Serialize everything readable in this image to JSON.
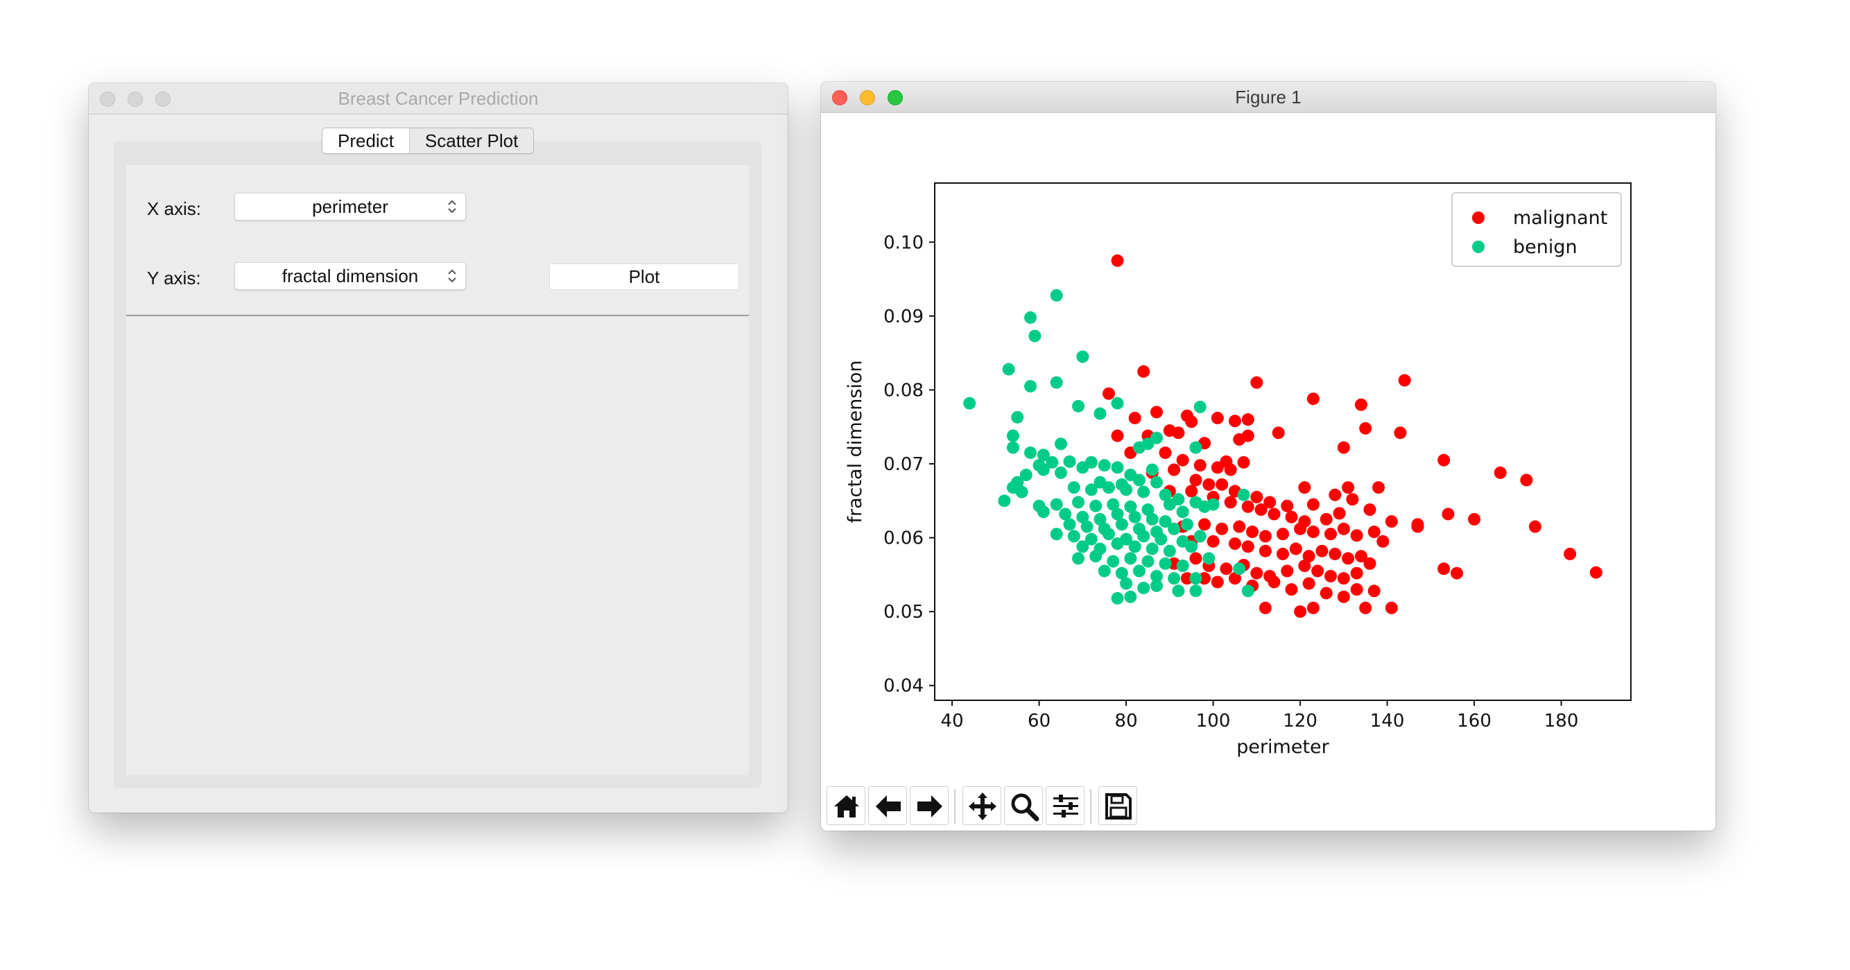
{
  "left_window": {
    "title": "Breast Cancer Prediction",
    "tabs": [
      {
        "label": "Predict"
      },
      {
        "label": "Scatter Plot"
      }
    ],
    "x_axis_label": "X axis:",
    "x_axis_value": "perimeter",
    "y_axis_label": "Y axis:",
    "y_axis_value": "fractal dimension",
    "plot_button": "Plot"
  },
  "right_window": {
    "title": "Figure 1",
    "toolbar": [
      "home-icon",
      "back-arrow-icon",
      "forward-arrow-icon",
      "pan-icon",
      "zoom-icon",
      "subplots-icon",
      "save-icon"
    ]
  },
  "chart_data": {
    "type": "scatter",
    "title": "",
    "xlabel": "perimeter",
    "ylabel": "fractal dimension",
    "xlim": [
      36,
      196
    ],
    "ylim": [
      0.038,
      0.108
    ],
    "xticks": [
      "40",
      "60",
      "80",
      "100",
      "120",
      "140",
      "160",
      "180"
    ],
    "yticks": [
      "0.04",
      "0.05",
      "0.06",
      "0.07",
      "0.08",
      "0.09",
      "0.10"
    ],
    "legend_position": "top-right",
    "series": [
      {
        "name": "malignant",
        "color": "#ff0000",
        "points": [
          [
            78,
            0.0975
          ],
          [
            84,
            0.0825
          ],
          [
            110,
            0.081
          ],
          [
            144,
            0.0813
          ],
          [
            123,
            0.0788
          ],
          [
            134,
            0.078
          ],
          [
            76,
            0.0795
          ],
          [
            82,
            0.0762
          ],
          [
            87,
            0.077
          ],
          [
            94,
            0.0765
          ],
          [
            101,
            0.0762
          ],
          [
            105,
            0.0758
          ],
          [
            108,
            0.076
          ],
          [
            115,
            0.0742
          ],
          [
            135,
            0.0748
          ],
          [
            143,
            0.0742
          ],
          [
            78,
            0.0738
          ],
          [
            85,
            0.0738
          ],
          [
            90,
            0.0745
          ],
          [
            92,
            0.0742
          ],
          [
            95,
            0.0757
          ],
          [
            98,
            0.0728
          ],
          [
            106,
            0.0733
          ],
          [
            108,
            0.0738
          ],
          [
            130,
            0.0722
          ],
          [
            153,
            0.0705
          ],
          [
            166,
            0.0688
          ],
          [
            172,
            0.0678
          ],
          [
            81,
            0.0715
          ],
          [
            89,
            0.0715
          ],
          [
            93,
            0.0705
          ],
          [
            97,
            0.0698
          ],
          [
            101,
            0.0695
          ],
          [
            103,
            0.0703
          ],
          [
            104,
            0.0692
          ],
          [
            107,
            0.0702
          ],
          [
            121,
            0.0668
          ],
          [
            131,
            0.0668
          ],
          [
            138,
            0.0668
          ],
          [
            86,
            0.0688
          ],
          [
            91,
            0.0692
          ],
          [
            96,
            0.0678
          ],
          [
            99,
            0.0672
          ],
          [
            102,
            0.0672
          ],
          [
            105,
            0.0663
          ],
          [
            110,
            0.0655
          ],
          [
            113,
            0.0648
          ],
          [
            117,
            0.0643
          ],
          [
            123,
            0.0645
          ],
          [
            128,
            0.0658
          ],
          [
            132,
            0.0652
          ],
          [
            90,
            0.0663
          ],
          [
            95,
            0.0663
          ],
          [
            100,
            0.0655
          ],
          [
            104,
            0.0648
          ],
          [
            108,
            0.0642
          ],
          [
            111,
            0.0638
          ],
          [
            114,
            0.0632
          ],
          [
            118,
            0.0628
          ],
          [
            121,
            0.0622
          ],
          [
            126,
            0.0625
          ],
          [
            129,
            0.0633
          ],
          [
            136,
            0.0638
          ],
          [
            141,
            0.0622
          ],
          [
            147,
            0.0618
          ],
          [
            154,
            0.0632
          ],
          [
            160,
            0.0625
          ],
          [
            174,
            0.0615
          ],
          [
            93,
            0.0615
          ],
          [
            98,
            0.0618
          ],
          [
            102,
            0.0612
          ],
          [
            106,
            0.0615
          ],
          [
            109,
            0.0608
          ],
          [
            112,
            0.0602
          ],
          [
            116,
            0.0605
          ],
          [
            120,
            0.0612
          ],
          [
            123,
            0.0608
          ],
          [
            127,
            0.0605
          ],
          [
            130,
            0.0612
          ],
          [
            133,
            0.0603
          ],
          [
            137,
            0.0608
          ],
          [
            147,
            0.0615
          ],
          [
            95,
            0.0595
          ],
          [
            100,
            0.0595
          ],
          [
            105,
            0.0592
          ],
          [
            108,
            0.0588
          ],
          [
            112,
            0.0582
          ],
          [
            116,
            0.0578
          ],
          [
            119,
            0.0585
          ],
          [
            122,
            0.0575
          ],
          [
            125,
            0.0582
          ],
          [
            128,
            0.0578
          ],
          [
            131,
            0.0572
          ],
          [
            134,
            0.0575
          ],
          [
            139,
            0.0595
          ],
          [
            91,
            0.0565
          ],
          [
            96,
            0.0572
          ],
          [
            99,
            0.0562
          ],
          [
            103,
            0.0558
          ],
          [
            107,
            0.0563
          ],
          [
            110,
            0.0552
          ],
          [
            113,
            0.0548
          ],
          [
            117,
            0.0555
          ],
          [
            121,
            0.0562
          ],
          [
            124,
            0.0555
          ],
          [
            127,
            0.0548
          ],
          [
            130,
            0.0545
          ],
          [
            133,
            0.0552
          ],
          [
            136,
            0.0565
          ],
          [
            153,
            0.0558
          ],
          [
            156,
            0.0552
          ],
          [
            182,
            0.0578
          ],
          [
            188,
            0.0553
          ],
          [
            94,
            0.0545
          ],
          [
            98,
            0.0545
          ],
          [
            101,
            0.054
          ],
          [
            105,
            0.0545
          ],
          [
            109,
            0.0535
          ],
          [
            114,
            0.054
          ],
          [
            118,
            0.053
          ],
          [
            122,
            0.0538
          ],
          [
            126,
            0.0525
          ],
          [
            130,
            0.052
          ],
          [
            133,
            0.053
          ],
          [
            137,
            0.0528
          ],
          [
            112,
            0.0505
          ],
          [
            120,
            0.05
          ],
          [
            123,
            0.0505
          ],
          [
            135,
            0.0505
          ],
          [
            141,
            0.0505
          ]
        ]
      },
      {
        "name": "benign",
        "color": "#00cc88",
        "points": [
          [
            64,
            0.0928
          ],
          [
            58,
            0.0898
          ],
          [
            59,
            0.0873
          ],
          [
            70,
            0.0845
          ],
          [
            53,
            0.0828
          ],
          [
            64,
            0.081
          ],
          [
            58,
            0.0805
          ],
          [
            44,
            0.0782
          ],
          [
            69,
            0.0778
          ],
          [
            78,
            0.0782
          ],
          [
            97,
            0.0777
          ],
          [
            74,
            0.0768
          ],
          [
            55,
            0.0763
          ],
          [
            83,
            0.0722
          ],
          [
            85,
            0.0727
          ],
          [
            87,
            0.0735
          ],
          [
            65,
            0.0727
          ],
          [
            54,
            0.0738
          ],
          [
            54,
            0.0722
          ],
          [
            58,
            0.0715
          ],
          [
            61,
            0.0712
          ],
          [
            60,
            0.0698
          ],
          [
            63,
            0.0702
          ],
          [
            67,
            0.0703
          ],
          [
            72,
            0.0702
          ],
          [
            75,
            0.0698
          ],
          [
            78,
            0.0695
          ],
          [
            81,
            0.0685
          ],
          [
            86,
            0.0692
          ],
          [
            96,
            0.0722
          ],
          [
            57,
            0.0685
          ],
          [
            61,
            0.0692
          ],
          [
            65,
            0.0688
          ],
          [
            70,
            0.0695
          ],
          [
            74,
            0.0675
          ],
          [
            79,
            0.0672
          ],
          [
            83,
            0.0678
          ],
          [
            87,
            0.0675
          ],
          [
            55,
            0.0675
          ],
          [
            54,
            0.0668
          ],
          [
            56,
            0.0662
          ],
          [
            68,
            0.0668
          ],
          [
            72,
            0.0665
          ],
          [
            76,
            0.0668
          ],
          [
            80,
            0.0665
          ],
          [
            84,
            0.0662
          ],
          [
            89,
            0.0658
          ],
          [
            92,
            0.0652
          ],
          [
            96,
            0.0648
          ],
          [
            100,
            0.0645
          ],
          [
            107,
            0.0658
          ],
          [
            52,
            0.065
          ],
          [
            60,
            0.0643
          ],
          [
            64,
            0.0645
          ],
          [
            69,
            0.0648
          ],
          [
            73,
            0.0643
          ],
          [
            77,
            0.0645
          ],
          [
            81,
            0.0642
          ],
          [
            85,
            0.0638
          ],
          [
            90,
            0.0645
          ],
          [
            93,
            0.0635
          ],
          [
            98,
            0.0642
          ],
          [
            61,
            0.0635
          ],
          [
            66,
            0.0632
          ],
          [
            70,
            0.0628
          ],
          [
            74,
            0.0625
          ],
          [
            78,
            0.0632
          ],
          [
            82,
            0.0628
          ],
          [
            86,
            0.0625
          ],
          [
            89,
            0.0622
          ],
          [
            94,
            0.0618
          ],
          [
            67,
            0.0618
          ],
          [
            71,
            0.0615
          ],
          [
            75,
            0.0612
          ],
          [
            79,
            0.0618
          ],
          [
            83,
            0.0612
          ],
          [
            87,
            0.0608
          ],
          [
            91,
            0.0612
          ],
          [
            64,
            0.0605
          ],
          [
            68,
            0.0602
          ],
          [
            72,
            0.0598
          ],
          [
            76,
            0.0605
          ],
          [
            80,
            0.0598
          ],
          [
            84,
            0.0602
          ],
          [
            88,
            0.0598
          ],
          [
            93,
            0.0595
          ],
          [
            97,
            0.0602
          ],
          [
            70,
            0.0588
          ],
          [
            74,
            0.0585
          ],
          [
            78,
            0.0592
          ],
          [
            82,
            0.0588
          ],
          [
            86,
            0.0585
          ],
          [
            90,
            0.0582
          ],
          [
            95,
            0.0588
          ],
          [
            69,
            0.0572
          ],
          [
            73,
            0.0575
          ],
          [
            77,
            0.0568
          ],
          [
            81,
            0.0572
          ],
          [
            85,
            0.0568
          ],
          [
            89,
            0.0565
          ],
          [
            93,
            0.0562
          ],
          [
            99,
            0.0572
          ],
          [
            106,
            0.0558
          ],
          [
            75,
            0.0555
          ],
          [
            79,
            0.0552
          ],
          [
            83,
            0.0555
          ],
          [
            87,
            0.0548
          ],
          [
            91,
            0.0545
          ],
          [
            96,
            0.0545
          ],
          [
            80,
            0.0538
          ],
          [
            84,
            0.0532
          ],
          [
            87,
            0.0535
          ],
          [
            92,
            0.0528
          ],
          [
            96,
            0.0528
          ],
          [
            108,
            0.0528
          ],
          [
            78,
            0.0518
          ],
          [
            81,
            0.052
          ]
        ]
      }
    ]
  }
}
